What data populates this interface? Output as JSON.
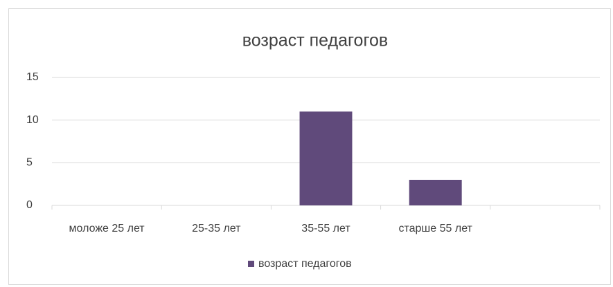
{
  "chart_data": {
    "type": "bar",
    "title": "возраст педагогов",
    "categories": [
      "моложе 25 лет",
      "25-35 лет",
      "35-55 лет",
      "старше 55 лет",
      null
    ],
    "series": [
      {
        "name": "возраст педагогов",
        "color": "#604a7b",
        "values": [
          0,
          0,
          11,
          3,
          null
        ]
      }
    ],
    "ylim": [
      0,
      15
    ],
    "yticks": [
      0,
      5,
      10,
      15
    ],
    "grid": true,
    "legend": "bottom"
  }
}
